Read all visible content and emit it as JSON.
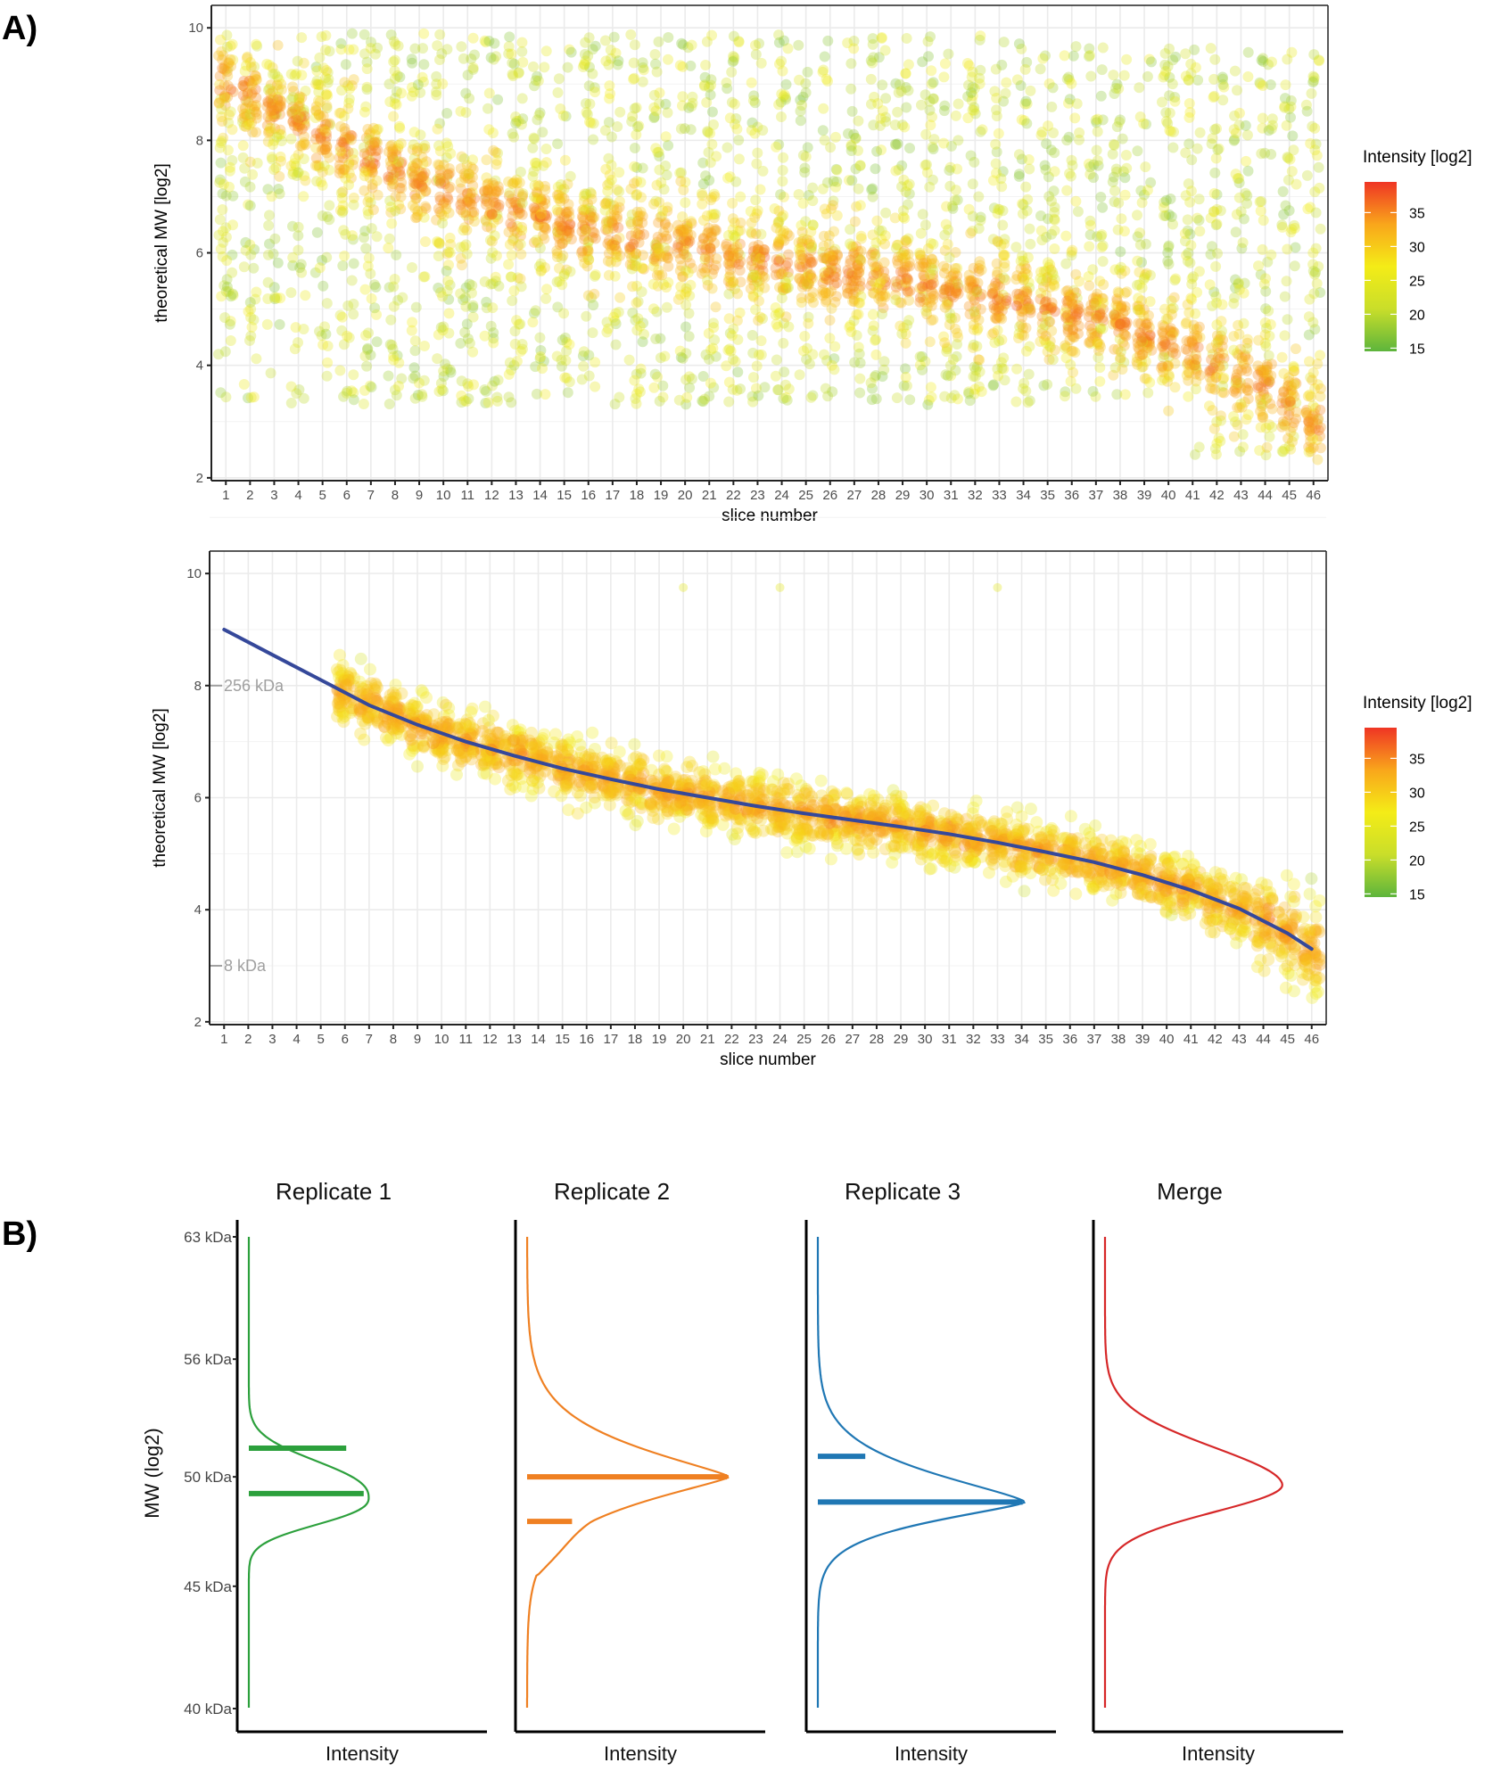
{
  "figure": {
    "panel_a_label": "A)",
    "panel_b_label": "B)"
  },
  "chart_data": [
    {
      "id": "a_top",
      "type": "scatter",
      "title": "",
      "xlabel": "slice number",
      "ylabel": "theoretical MW [log2]",
      "x_ticks": [
        1,
        2,
        3,
        4,
        5,
        6,
        7,
        8,
        9,
        10,
        11,
        12,
        13,
        14,
        15,
        16,
        17,
        18,
        19,
        20,
        21,
        22,
        23,
        24,
        25,
        26,
        27,
        28,
        29,
        30,
        31,
        32,
        33,
        34,
        35,
        36,
        37,
        38,
        39,
        40,
        41,
        42,
        43,
        44,
        45,
        46
      ],
      "y_ticks": [
        2,
        4,
        6,
        8,
        10
      ],
      "xlim": [
        0.4,
        46.6
      ],
      "ylim": [
        1.95,
        10.4
      ],
      "grid": true,
      "color_scale": {
        "title": "Intensity [log2]",
        "ticks": [
          15,
          20,
          25,
          30,
          35
        ],
        "range": [
          14,
          39
        ],
        "colors": [
          "#5db53c",
          "#c9de2a",
          "#f4ec17",
          "#f9a61b",
          "#ef3524"
        ]
      },
      "trend": {
        "description": "high-intensity diagonal band (log2 MW vs slice)",
        "points": [
          [
            1,
            9.0
          ],
          [
            5,
            8.1
          ],
          [
            8,
            7.45
          ],
          [
            10,
            7.1
          ],
          [
            14,
            6.6
          ],
          [
            18,
            6.25
          ],
          [
            22,
            5.95
          ],
          [
            26,
            5.7
          ],
          [
            30,
            5.45
          ],
          [
            34,
            5.1
          ],
          [
            38,
            4.7
          ],
          [
            42,
            4.05
          ],
          [
            44,
            3.6
          ],
          [
            45,
            3.3
          ],
          [
            46,
            3.0
          ]
        ]
      },
      "background_spread": {
        "y_min": 3.3,
        "y_max": 9.9,
        "intensity_range": [
          16,
          27
        ]
      },
      "points_per_slice": 90,
      "legend": "right"
    },
    {
      "id": "a_bottom",
      "type": "scatter",
      "title": "",
      "xlabel": "slice number",
      "ylabel": "theoretical MW [log2]",
      "x_ticks": [
        1,
        2,
        3,
        4,
        5,
        6,
        7,
        8,
        9,
        10,
        11,
        12,
        13,
        14,
        15,
        16,
        17,
        18,
        19,
        20,
        21,
        22,
        23,
        24,
        25,
        26,
        27,
        28,
        29,
        30,
        31,
        32,
        33,
        34,
        35,
        36,
        37,
        38,
        39,
        40,
        41,
        42,
        43,
        44,
        45,
        46
      ],
      "y_ticks": [
        2,
        4,
        6,
        8,
        10
      ],
      "xlim": [
        0.4,
        46.6
      ],
      "ylim": [
        1.95,
        10.4
      ],
      "grid": true,
      "color_scale": {
        "title": "Intensity [log2]",
        "ticks": [
          15,
          20,
          25,
          30,
          35
        ],
        "range": [
          14,
          39
        ],
        "colors": [
          "#5db53c",
          "#c9de2a",
          "#f4ec17",
          "#f9a61b",
          "#ef3524"
        ]
      },
      "fit_line": {
        "color": "#35489a",
        "points": [
          [
            1,
            9.0
          ],
          [
            3,
            8.55
          ],
          [
            5,
            8.1
          ],
          [
            7,
            7.65
          ],
          [
            9,
            7.3
          ],
          [
            11,
            7.0
          ],
          [
            13,
            6.75
          ],
          [
            15,
            6.52
          ],
          [
            17,
            6.33
          ],
          [
            19,
            6.15
          ],
          [
            21,
            6.0
          ],
          [
            23,
            5.85
          ],
          [
            25,
            5.72
          ],
          [
            27,
            5.6
          ],
          [
            29,
            5.48
          ],
          [
            31,
            5.35
          ],
          [
            33,
            5.2
          ],
          [
            35,
            5.03
          ],
          [
            37,
            4.85
          ],
          [
            39,
            4.62
          ],
          [
            41,
            4.35
          ],
          [
            43,
            4.02
          ],
          [
            45,
            3.58
          ],
          [
            46,
            3.3
          ]
        ]
      },
      "band_slices": [
        6,
        46
      ],
      "annotations": [
        {
          "label": "256 kDa",
          "y": 8
        },
        {
          "label": "8 kDa",
          "y": 3
        }
      ],
      "stray_points": [
        [
          20,
          9.75
        ],
        [
          24,
          9.75
        ],
        [
          33,
          9.75
        ]
      ],
      "points_per_slice": 60,
      "legend": "right"
    },
    {
      "id": "b_profiles",
      "type": "line",
      "ylabel": "MW (log2)",
      "xlabel": "Intensity",
      "y_ticks": [
        "40 kDa",
        "45 kDa",
        "50 kDa",
        "56 kDa",
        "63 kDa"
      ],
      "y_tick_values_kda": [
        40,
        45,
        50,
        56,
        63
      ],
      "ylim_kda": [
        40,
        63
      ],
      "facets": [
        {
          "title": "Replicate 1",
          "color": "#2ca03c",
          "peak_kda": 49.0,
          "peak_rel": 0.48,
          "shape": "broad-flat",
          "bars": [
            {
              "kda": 51.4,
              "rel": 0.39
            },
            {
              "kda": 49.2,
              "rel": 0.46
            }
          ]
        },
        {
          "title": "Replicate 2",
          "color": "#ef8022",
          "peak_kda": 50.0,
          "peak_rel": 0.81,
          "shape": "sharp-tailed",
          "bars": [
            {
              "kda": 50.0,
              "rel": 0.8
            },
            {
              "kda": 47.9,
              "rel": 0.18
            }
          ]
        },
        {
          "title": "Replicate 3",
          "color": "#1f77b4",
          "peak_kda": 48.8,
          "peak_rel": 0.83,
          "shape": "sharp",
          "bars": [
            {
              "kda": 51.0,
              "rel": 0.19
            },
            {
              "kda": 48.8,
              "rel": 0.82
            }
          ]
        },
        {
          "title": "Merge",
          "color": "#d62728",
          "peak_kda": 49.6,
          "peak_rel": 0.71,
          "shape": "smooth",
          "bars": []
        }
      ]
    }
  ]
}
